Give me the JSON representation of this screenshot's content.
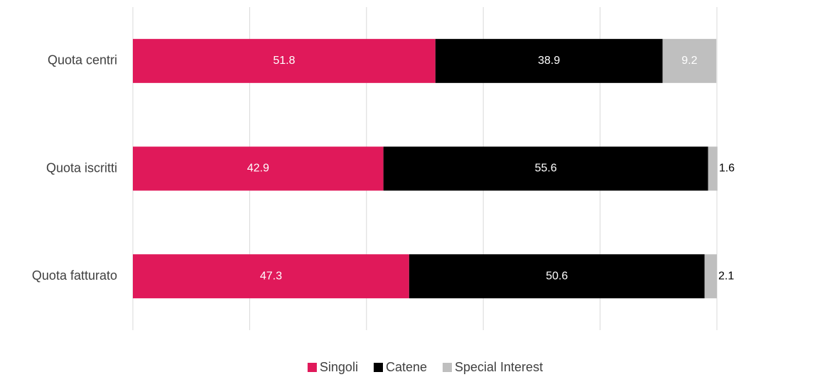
{
  "chart_data": {
    "type": "stacked_bar_horizontal",
    "categories": [
      "Quota centri",
      "Quota iscritti",
      "Quota fatturato"
    ],
    "series": [
      {
        "name": "Singoli",
        "color": "#e0195a",
        "values": [
          51.8,
          42.9,
          47.3
        ]
      },
      {
        "name": "Catene",
        "color": "#000000",
        "values": [
          38.9,
          55.6,
          50.6
        ]
      },
      {
        "name": "Special Interest",
        "color": "#bfbfbf",
        "values": [
          9.2,
          1.6,
          2.1
        ]
      }
    ],
    "xlim": [
      0,
      100
    ],
    "xticks": [
      0,
      20,
      40,
      60,
      80,
      100
    ],
    "grid": true,
    "legend": "bottom"
  }
}
